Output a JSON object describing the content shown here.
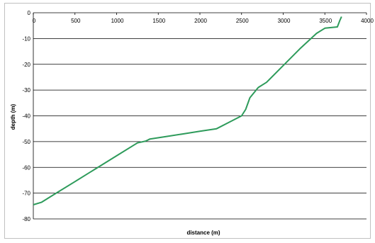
{
  "chart_data": {
    "type": "line",
    "title": "",
    "xlabel": "distance (m)",
    "ylabel": "depth (m)",
    "xlim": [
      0,
      4000
    ],
    "ylim": [
      -80,
      0
    ],
    "x_ticks": [
      "0",
      "500",
      "1000",
      "1500",
      "2000",
      "2500",
      "3000",
      "3500",
      "4000"
    ],
    "y_ticks": [
      "0",
      "-10",
      "-20",
      "-30",
      "-40",
      "-50",
      "-60",
      "-70",
      "-80"
    ],
    "grid": "horizontal",
    "legend": "none",
    "series": [
      {
        "color": "#2e9b5b",
        "x": [
          0,
          100,
          250,
          500,
          750,
          1000,
          1250,
          1350,
          1400,
          1600,
          1800,
          2000,
          2200,
          2350,
          2500,
          2550,
          2600,
          2700,
          2800,
          3000,
          3200,
          3350,
          3400,
          3500,
          3650,
          3680,
          3700
        ],
        "y": [
          -74.5,
          -73.5,
          -70.5,
          -65.5,
          -60.5,
          -55.5,
          -50.5,
          -49.8,
          -49,
          -48,
          -47,
          -46,
          -45,
          -42.5,
          -40,
          -37.5,
          -33,
          -29,
          -27,
          -20.5,
          -14,
          -9.5,
          -8,
          -6,
          -5.5,
          -3,
          -1.5
        ]
      }
    ]
  }
}
